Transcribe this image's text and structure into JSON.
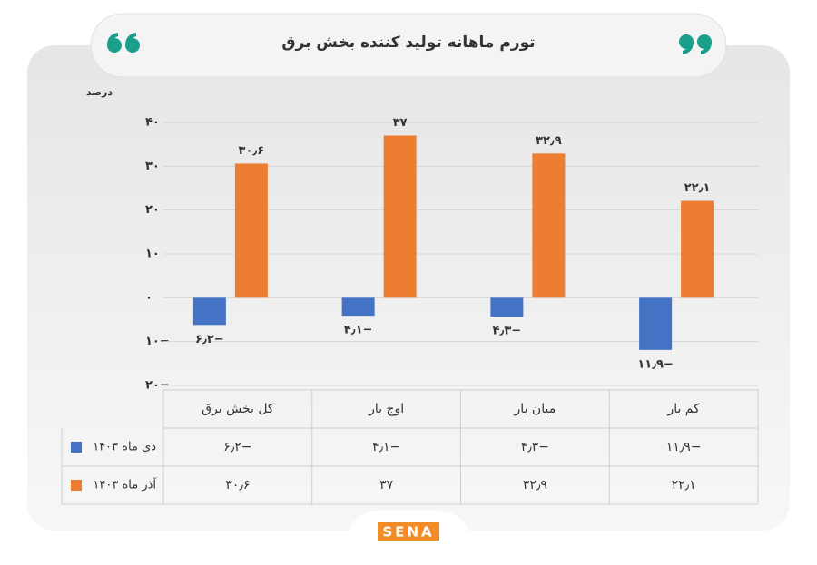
{
  "chart_data": {
    "type": "bar",
    "title": "تورم ماهانه تولید کننده بخش برق",
    "y_label": "درصد",
    "categories": [
      "کل بخش برق",
      "اوج بار",
      "میان بار",
      "کم بار"
    ],
    "series": [
      {
        "name": "دی ماه ۱۴۰۳",
        "color": "#4472c4",
        "values": [
          -6.2,
          -4.1,
          -4.3,
          -11.9
        ],
        "value_labels": [
          "−۶٫۲",
          "−۴٫۱",
          "−۴٫۳",
          "−۱۱٫۹"
        ]
      },
      {
        "name": "آذر ماه ۱۴۰۳",
        "color": "#ed7d31",
        "values": [
          30.6,
          37,
          32.9,
          22.1
        ],
        "value_labels": [
          "۳۰٫۶",
          "۳۷",
          "۳۲٫۹",
          "۲۲٫۱"
        ]
      }
    ],
    "ylim": [
      -20,
      40
    ],
    "yticks": [
      {
        "value": -20,
        "label": "−۲۰"
      },
      {
        "value": -10,
        "label": "−۱۰"
      },
      {
        "value": 0,
        "label": "۰"
      },
      {
        "value": 10,
        "label": "۱۰"
      },
      {
        "value": 20,
        "label": "۲۰"
      },
      {
        "value": 30,
        "label": "۳۰"
      },
      {
        "value": 40,
        "label": "۴۰"
      }
    ],
    "grid": true
  },
  "logo": "SENA"
}
